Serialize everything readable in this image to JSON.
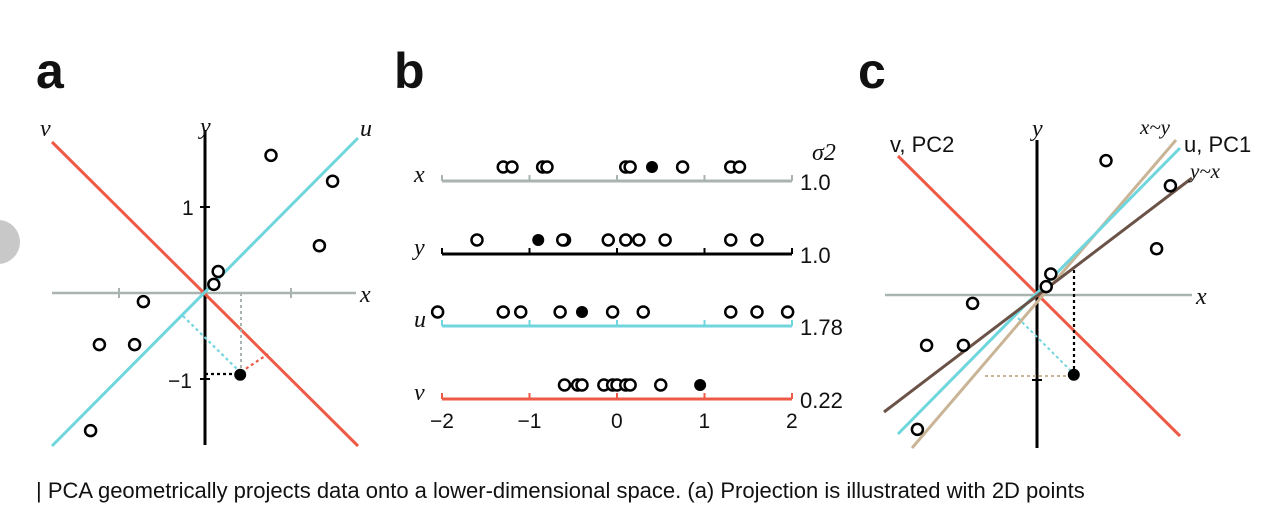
{
  "caption": "| PCA geometrically projects data onto a lower-dimensional space. (a) Projection is illustrated with 2D points",
  "colors": {
    "x_axis": "#a9b3b0",
    "u_line": "#6fd6dd",
    "v_line": "#ee5a46",
    "y_axis": "#000000",
    "x_on_y": "#c9b496",
    "y_on_x": "#6b5247"
  },
  "chart_data": [
    {
      "panel": "a",
      "type": "scatter",
      "axis_labels": {
        "x": "x",
        "y": "y",
        "u": "u",
        "v": "v"
      },
      "ticks_y": [
        "1",
        "−1"
      ],
      "points": [
        {
          "x": -1.3,
          "y": -1.6
        },
        {
          "x": -1.2,
          "y": -0.6
        },
        {
          "x": -0.8,
          "y": -0.6
        },
        {
          "x": -0.7,
          "y": -0.1
        },
        {
          "x": 0.1,
          "y": 0.1
        },
        {
          "x": 0.15,
          "y": 0.25
        },
        {
          "x": 1.3,
          "y": 0.55
        },
        {
          "x": 1.45,
          "y": 1.3
        },
        {
          "x": 0.75,
          "y": 1.6
        }
      ],
      "highlight": {
        "x": 0.4,
        "y": -0.95
      }
    },
    {
      "panel": "b",
      "type": "dot-strip",
      "variance_header": "σ2",
      "tick_labels": [
        "−2",
        "−1",
        "0",
        "1",
        "2"
      ],
      "xlim": [
        -2,
        2
      ],
      "series": [
        {
          "name": "x",
          "variance": "1.0",
          "values": [
            -1.3,
            -1.2,
            -0.85,
            -0.8,
            0.1,
            0.15,
            0.75,
            1.3,
            1.4
          ],
          "filled": 0.4
        },
        {
          "name": "y",
          "variance": "1.0",
          "values": [
            -1.6,
            -0.6,
            -0.62,
            0.1,
            -0.1,
            0.25,
            0.55,
            1.3,
            1.6
          ],
          "filled": -0.9
        },
        {
          "name": "u",
          "variance": "1.78",
          "values": [
            -2.05,
            -1.3,
            -1.1,
            -0.65,
            -0.05,
            0.3,
            1.3,
            1.6,
            1.95
          ],
          "filled": -0.4
        },
        {
          "name": "v",
          "variance": "0.22",
          "values": [
            -0.6,
            -0.45,
            -0.4,
            -0.15,
            -0.05,
            0.0,
            0.1,
            0.15,
            0.5
          ],
          "filled": 0.95
        }
      ]
    },
    {
      "panel": "c",
      "type": "scatter",
      "axis_labels": {
        "x": "x",
        "y": "y"
      },
      "line_labels": {
        "v": "v, PC2",
        "x_on_y": "x~y",
        "u": "u, PC1",
        "y_on_x": "y~x"
      },
      "points": [
        {
          "x": -1.3,
          "y": -1.6
        },
        {
          "x": -1.2,
          "y": -0.6
        },
        {
          "x": -0.8,
          "y": -0.6
        },
        {
          "x": -0.7,
          "y": -0.1
        },
        {
          "x": 0.1,
          "y": 0.1
        },
        {
          "x": 0.15,
          "y": 0.25
        },
        {
          "x": 1.3,
          "y": 0.55
        },
        {
          "x": 1.45,
          "y": 1.3
        },
        {
          "x": 0.75,
          "y": 1.6
        }
      ],
      "highlight": {
        "x": 0.4,
        "y": -0.95
      }
    }
  ]
}
